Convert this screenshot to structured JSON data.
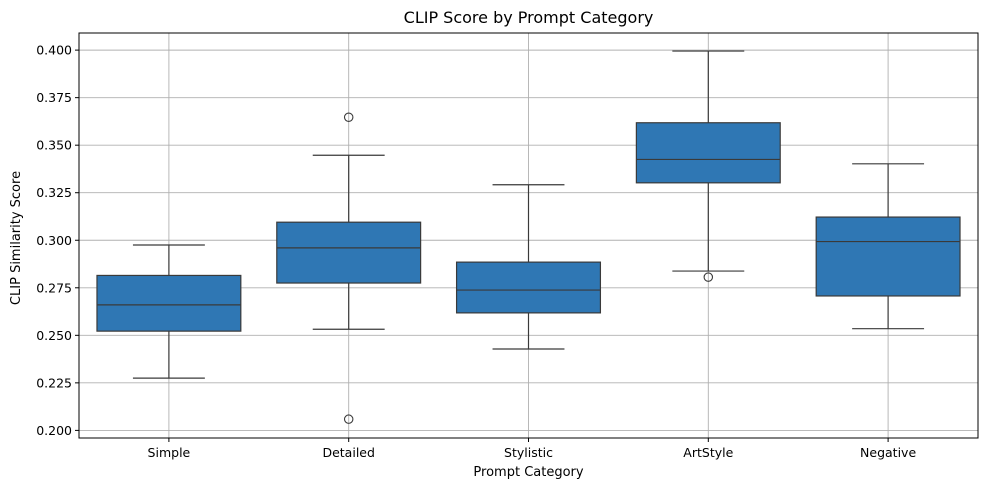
{
  "chart_data": {
    "type": "box",
    "title": "CLIP Score by Prompt Category",
    "xlabel": "Prompt Category",
    "ylabel": "CLIP Similarity Score",
    "ylim": [
      0.196,
      0.409
    ],
    "yticks": [
      "0.200",
      "0.225",
      "0.250",
      "0.275",
      "0.300",
      "0.325",
      "0.350",
      "0.375",
      "0.400"
    ],
    "grid": true,
    "color": "#2f77b4",
    "categories": [
      "Simple",
      "Detailed",
      "Stylistic",
      "ArtStyle",
      "Negative"
    ],
    "boxes": [
      {
        "category": "Simple",
        "whisker_low": 0.2275,
        "q1": 0.2522,
        "median": 0.266,
        "q3": 0.2815,
        "whisker_high": 0.2975,
        "outliers": []
      },
      {
        "category": "Detailed",
        "whisker_low": 0.2532,
        "q1": 0.2775,
        "median": 0.296,
        "q3": 0.3095,
        "whisker_high": 0.3447,
        "outliers": [
          0.3647,
          0.2059
        ]
      },
      {
        "category": "Stylistic",
        "whisker_low": 0.2428,
        "q1": 0.2618,
        "median": 0.2738,
        "q3": 0.2885,
        "whisker_high": 0.3292,
        "outliers": []
      },
      {
        "category": "ArtStyle",
        "whisker_low": 0.2838,
        "q1": 0.3302,
        "median": 0.3425,
        "q3": 0.3618,
        "whisker_high": 0.3995,
        "outliers": [
          0.2806
        ]
      },
      {
        "category": "Negative",
        "whisker_low": 0.2535,
        "q1": 0.2707,
        "median": 0.2993,
        "q3": 0.3122,
        "whisker_high": 0.3402,
        "outliers": []
      }
    ]
  }
}
